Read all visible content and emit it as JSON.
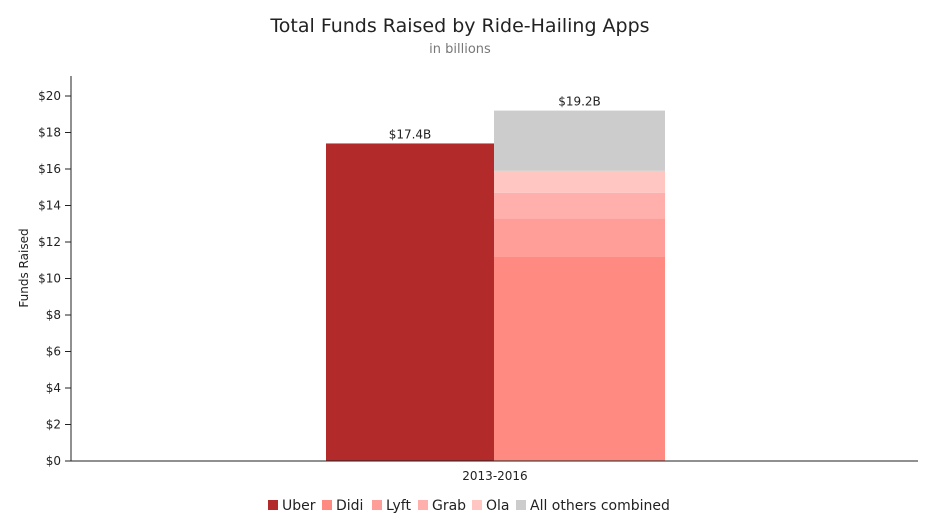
{
  "chart_data": {
    "type": "bar",
    "title": "Total Funds Raised by Ride-Hailing Apps",
    "subtitle": "in billions",
    "ylabel": "Funds Raised",
    "xlabel": "",
    "category": "2013-2016",
    "ylim": [
      0,
      21
    ],
    "yticks": [
      {
        "value": 0,
        "label": "$0"
      },
      {
        "value": 2,
        "label": "$2"
      },
      {
        "value": 4,
        "label": "$4"
      },
      {
        "value": 6,
        "label": "$6"
      },
      {
        "value": 8,
        "label": "$8"
      },
      {
        "value": 10,
        "label": "$10"
      },
      {
        "value": 12,
        "label": "$12"
      },
      {
        "value": 14,
        "label": "$14"
      },
      {
        "value": 16,
        "label": "$16"
      },
      {
        "value": 18,
        "label": "$18"
      },
      {
        "value": 20,
        "label": "$20"
      }
    ],
    "bars": [
      {
        "stack": "uber",
        "total_label": "$17.4B",
        "segments": [
          {
            "name": "Uber",
            "value": 17.4,
            "color": "#b22a2a"
          }
        ]
      },
      {
        "stack": "competitors",
        "total_label": "$19.2B",
        "segments": [
          {
            "name": "Didi",
            "value": 11.2,
            "color": "#ff8a82"
          },
          {
            "name": "Lyft",
            "value": 2.1,
            "color": "#ff9e99"
          },
          {
            "name": "Grab",
            "value": 1.4,
            "color": "#ffb0ac"
          },
          {
            "name": "Ola",
            "value": 1.2,
            "color": "#ffc6c2"
          },
          {
            "name": "All others combined",
            "value": 3.3,
            "color": "#cccccc"
          }
        ]
      }
    ],
    "legend": {
      "position": "bottom",
      "entries": [
        {
          "name": "Uber",
          "color": "#b22a2a"
        },
        {
          "name": "Didi",
          "color": "#ff8a82"
        },
        {
          "name": "Lyft",
          "color": "#ff9e99"
        },
        {
          "name": "Grab",
          "color": "#ffb0ac"
        },
        {
          "name": "Ola",
          "color": "#ffc6c2"
        },
        {
          "name": "All others combined",
          "color": "#cccccc"
        }
      ]
    },
    "grid": false
  }
}
